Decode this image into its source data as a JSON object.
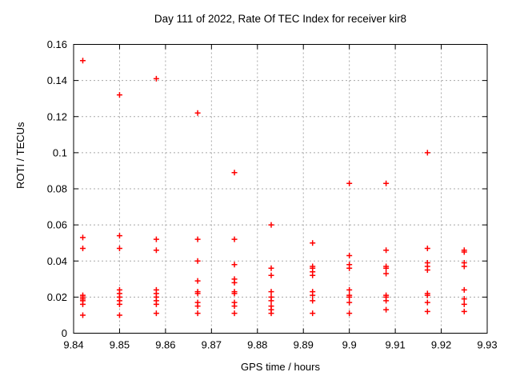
{
  "chart_data": {
    "type": "scatter",
    "title": "Day 111 of 2022, Rate Of TEC Index for receiver kir8",
    "xlabel": "GPS time / hours",
    "ylabel": "ROTI / TECUs",
    "xlim": [
      9.84,
      9.93
    ],
    "ylim": [
      0,
      0.16
    ],
    "x_ticks": [
      {
        "value": 9.84,
        "label": "9.84"
      },
      {
        "value": 9.85,
        "label": "9.85"
      },
      {
        "value": 9.86,
        "label": "9.86"
      },
      {
        "value": 9.87,
        "label": "9.87"
      },
      {
        "value": 9.88,
        "label": "9.88"
      },
      {
        "value": 9.89,
        "label": "9.89"
      },
      {
        "value": 9.9,
        "label": "9.9"
      },
      {
        "value": 9.91,
        "label": "9.91"
      },
      {
        "value": 9.92,
        "label": "9.92"
      },
      {
        "value": 9.93,
        "label": "9.93"
      }
    ],
    "y_ticks": [
      {
        "value": 0,
        "label": "0"
      },
      {
        "value": 0.02,
        "label": "0.02"
      },
      {
        "value": 0.04,
        "label": "0.04"
      },
      {
        "value": 0.06,
        "label": "0.06"
      },
      {
        "value": 0.08,
        "label": "0.08"
      },
      {
        "value": 0.1,
        "label": "0.1"
      },
      {
        "value": 0.12,
        "label": "0.12"
      },
      {
        "value": 0.14,
        "label": "0.14"
      },
      {
        "value": 0.16,
        "label": "0.16"
      }
    ],
    "grid": true,
    "legend": "none",
    "marker": {
      "shape": "plus",
      "color": "#ff0000",
      "size": 7
    },
    "series": [
      {
        "name": "ROTI",
        "points": [
          [
            9.842,
            0.151
          ],
          [
            9.842,
            0.053
          ],
          [
            9.842,
            0.047
          ],
          [
            9.842,
            0.021
          ],
          [
            9.842,
            0.02
          ],
          [
            9.842,
            0.019
          ],
          [
            9.842,
            0.018
          ],
          [
            9.842,
            0.016
          ],
          [
            9.842,
            0.01
          ],
          [
            9.85,
            0.132
          ],
          [
            9.85,
            0.054
          ],
          [
            9.85,
            0.047
          ],
          [
            9.85,
            0.024
          ],
          [
            9.85,
            0.022
          ],
          [
            9.85,
            0.02
          ],
          [
            9.85,
            0.018
          ],
          [
            9.85,
            0.016
          ],
          [
            9.85,
            0.01
          ],
          [
            9.858,
            0.141
          ],
          [
            9.858,
            0.052
          ],
          [
            9.858,
            0.046
          ],
          [
            9.858,
            0.024
          ],
          [
            9.858,
            0.022
          ],
          [
            9.858,
            0.02
          ],
          [
            9.858,
            0.018
          ],
          [
            9.858,
            0.016
          ],
          [
            9.858,
            0.011
          ],
          [
            9.867,
            0.122
          ],
          [
            9.867,
            0.052
          ],
          [
            9.867,
            0.04
          ],
          [
            9.867,
            0.029
          ],
          [
            9.867,
            0.023
          ],
          [
            9.867,
            0.022
          ],
          [
            9.867,
            0.017
          ],
          [
            9.867,
            0.015
          ],
          [
            9.867,
            0.011
          ],
          [
            9.875,
            0.089
          ],
          [
            9.875,
            0.052
          ],
          [
            9.875,
            0.038
          ],
          [
            9.875,
            0.03
          ],
          [
            9.875,
            0.028
          ],
          [
            9.875,
            0.023
          ],
          [
            9.875,
            0.022
          ],
          [
            9.875,
            0.017
          ],
          [
            9.875,
            0.015
          ],
          [
            9.875,
            0.011
          ],
          [
            9.883,
            0.06
          ],
          [
            9.883,
            0.036
          ],
          [
            9.883,
            0.032
          ],
          [
            9.883,
            0.023
          ],
          [
            9.883,
            0.02
          ],
          [
            9.883,
            0.018
          ],
          [
            9.883,
            0.015
          ],
          [
            9.883,
            0.013
          ],
          [
            9.883,
            0.011
          ],
          [
            9.892,
            0.05
          ],
          [
            9.892,
            0.037
          ],
          [
            9.892,
            0.036
          ],
          [
            9.892,
            0.034
          ],
          [
            9.892,
            0.032
          ],
          [
            9.892,
            0.023
          ],
          [
            9.892,
            0.021
          ],
          [
            9.892,
            0.018
          ],
          [
            9.892,
            0.011
          ],
          [
            9.9,
            0.083
          ],
          [
            9.9,
            0.043
          ],
          [
            9.9,
            0.038
          ],
          [
            9.9,
            0.036
          ],
          [
            9.9,
            0.024
          ],
          [
            9.9,
            0.021
          ],
          [
            9.9,
            0.02
          ],
          [
            9.9,
            0.017
          ],
          [
            9.9,
            0.011
          ],
          [
            9.908,
            0.083
          ],
          [
            9.908,
            0.046
          ],
          [
            9.908,
            0.037
          ],
          [
            9.908,
            0.036
          ],
          [
            9.908,
            0.033
          ],
          [
            9.908,
            0.021
          ],
          [
            9.908,
            0.02
          ],
          [
            9.908,
            0.018
          ],
          [
            9.908,
            0.013
          ],
          [
            9.917,
            0.1
          ],
          [
            9.917,
            0.047
          ],
          [
            9.917,
            0.039
          ],
          [
            9.917,
            0.037
          ],
          [
            9.917,
            0.035
          ],
          [
            9.917,
            0.022
          ],
          [
            9.917,
            0.021
          ],
          [
            9.917,
            0.017
          ],
          [
            9.917,
            0.012
          ],
          [
            9.925,
            0.046
          ],
          [
            9.925,
            0.045
          ],
          [
            9.925,
            0.039
          ],
          [
            9.925,
            0.037
          ],
          [
            9.925,
            0.024
          ],
          [
            9.925,
            0.019
          ],
          [
            9.925,
            0.016
          ],
          [
            9.925,
            0.012
          ]
        ]
      }
    ]
  },
  "colors": {
    "background": "#ffffff",
    "axis_border": "#000000",
    "grid": "#a8a8a8",
    "marker": "#ff0000",
    "text": "#000000"
  }
}
